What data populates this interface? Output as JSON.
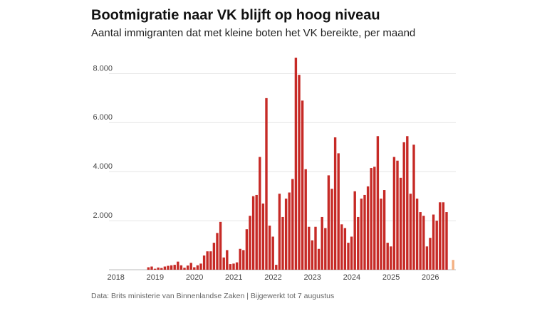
{
  "chart_data": {
    "type": "bar",
    "title": "Bootmigratie naar VK blijft op hoog niveau",
    "subtitle": "Aantal immigranten dat met kleine boten het VK bereikte, per maand",
    "source": "Data: Brits ministerie van Binnenlandse Zaken | Bijgewerkt tot 7 augustus",
    "categories": [
      "2018",
      null,
      null,
      null,
      null,
      null,
      null,
      null,
      null,
      null,
      null,
      null,
      "2019",
      null,
      null,
      null,
      null,
      null,
      null,
      null,
      null,
      null,
      null,
      null,
      "2020",
      null,
      null,
      null,
      null,
      null,
      null,
      null,
      null,
      null,
      null,
      null,
      "2021",
      null,
      null,
      null,
      null,
      null,
      null,
      null,
      null,
      null,
      null,
      null,
      "2022",
      null,
      null,
      null,
      null,
      null,
      null,
      null,
      null,
      null,
      null,
      null,
      "2023",
      null,
      null,
      null,
      null,
      null,
      null,
      null,
      null,
      null,
      null,
      null,
      "2024",
      null,
      null,
      null,
      null,
      null,
      null,
      null,
      null,
      null,
      null,
      null,
      "2025",
      null,
      null,
      null,
      null,
      null,
      null,
      null,
      null,
      null,
      null,
      null,
      "2026",
      null,
      null,
      null,
      null,
      null,
      null,
      null
    ],
    "series": [
      {
        "color": "#c62a26",
        "values": [
          0,
          0,
          0,
          0,
          0,
          0,
          0,
          0,
          0,
          0,
          100,
          130,
          40,
          90,
          70,
          130,
          160,
          180,
          200,
          330,
          180,
          80,
          170,
          280,
          100,
          180,
          250,
          580,
          750,
          750,
          1100,
          1500,
          1950,
          500,
          800,
          230,
          250,
          300,
          850,
          800,
          1650,
          2200,
          3000,
          3050,
          4600,
          2700,
          7000,
          1800,
          1350,
          200,
          3100,
          2150,
          2900,
          3150,
          3700,
          8650,
          7950,
          6900,
          4100,
          1750,
          1200,
          1750,
          850,
          2150,
          1700,
          3850,
          3300,
          5400,
          4750,
          1850,
          1700,
          1100,
          1350,
          3200,
          2150,
          2900,
          3050,
          3400,
          4150,
          4200,
          5450,
          2900,
          3250,
          1100,
          950,
          4600,
          4450,
          3750,
          5200,
          5450,
          3100,
          5100,
          2900,
          2350,
          2200,
          950,
          1300,
          2250,
          2000,
          2750,
          2750,
          2350,
          0,
          null
        ]
      },
      {
        "color": "#f4b183",
        "values": [
          null,
          null,
          null,
          null,
          null,
          null,
          null,
          null,
          null,
          null,
          null,
          null,
          null,
          null,
          null,
          null,
          null,
          null,
          null,
          null,
          null,
          null,
          null,
          null,
          null,
          null,
          null,
          null,
          null,
          null,
          null,
          null,
          null,
          null,
          null,
          null,
          null,
          null,
          null,
          null,
          null,
          null,
          null,
          null,
          null,
          null,
          null,
          null,
          null,
          null,
          null,
          null,
          null,
          null,
          null,
          null,
          null,
          null,
          null,
          null,
          null,
          null,
          null,
          null,
          null,
          null,
          null,
          null,
          null,
          null,
          null,
          null,
          null,
          null,
          null,
          null,
          null,
          null,
          null,
          null,
          null,
          null,
          null,
          null,
          null,
          null,
          null,
          null,
          null,
          null,
          null,
          null,
          null,
          null,
          null,
          null,
          null,
          null,
          null,
          null,
          null,
          null,
          null,
          400
        ]
      }
    ],
    "ylim": [
      0,
      9000
    ],
    "yticks": [
      {
        "value": 2000,
        "label": "2.000"
      },
      {
        "value": 4000,
        "label": "4.000"
      },
      {
        "value": 6000,
        "label": "6.000"
      },
      {
        "value": 8000,
        "label": "8.000"
      }
    ],
    "grid": true
  }
}
